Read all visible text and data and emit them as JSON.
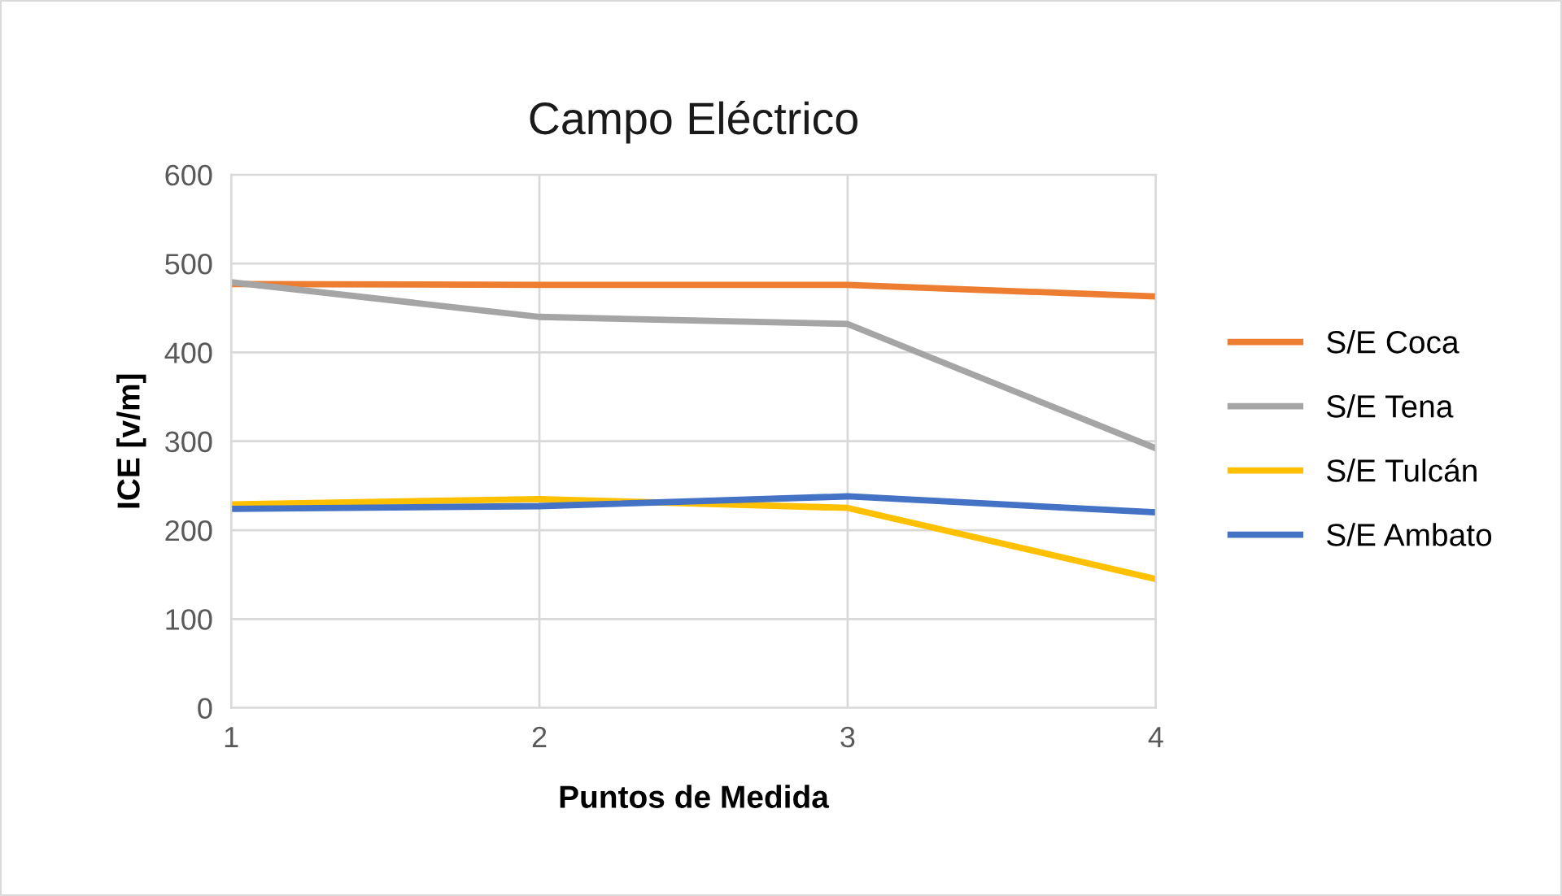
{
  "chart_data": {
    "type": "line",
    "title": "Campo Eléctrico",
    "xlabel": "Puntos de Medida",
    "ylabel": "ICE [v/m]",
    "x": [
      1,
      2,
      3,
      4
    ],
    "xlim": [
      1,
      4
    ],
    "xticks": [
      1,
      2,
      3,
      4
    ],
    "ylim": [
      0,
      600
    ],
    "yticks": [
      0,
      100,
      200,
      300,
      400,
      500,
      600
    ],
    "grid": true,
    "legend": "right",
    "marker": "none",
    "line_style": "solid",
    "series": [
      {
        "name": "S/E Coca",
        "color": "#ed7d31",
        "values": [
          477,
          476,
          476,
          463
        ]
      },
      {
        "name": "S/E Tena",
        "color": "#a5a5a5",
        "values": [
          479,
          440,
          432,
          292
        ]
      },
      {
        "name": "S/E Tulcán",
        "color": "#ffc000",
        "values": [
          229,
          235,
          225,
          145
        ]
      },
      {
        "name": "S/E Ambato",
        "color": "#4472c4",
        "values": [
          224,
          227,
          238,
          220
        ]
      }
    ]
  }
}
